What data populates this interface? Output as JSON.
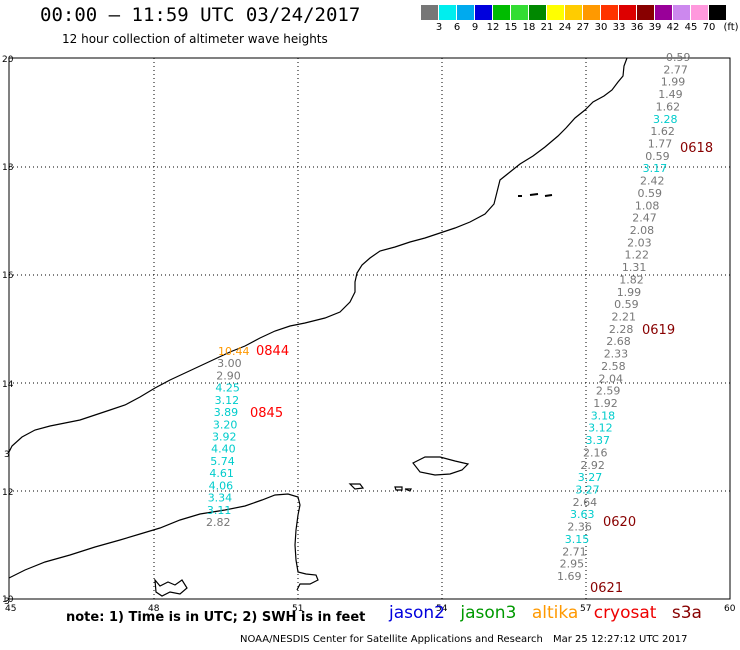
{
  "header": {
    "title": "00:00 – 11:59 UTC 03/24/2017",
    "subtitle": "12 hour collection of altimeter wave heights"
  },
  "scale": {
    "unit": "(ft)",
    "labels": [
      "3",
      "6",
      "9",
      "12",
      "15",
      "18",
      "21",
      "24",
      "27",
      "30",
      "33",
      "36",
      "39",
      "42",
      "45",
      "70"
    ],
    "colors": [
      "#777777",
      "#00eeee",
      "#00aaee",
      "#0000dd",
      "#00bb00",
      "#33dd33",
      "#008800",
      "#ffff00",
      "#ffcc00",
      "#ff9900",
      "#ff3300",
      "#dd0000",
      "#880000",
      "#990099",
      "#cc88ee",
      "#ff99dd",
      "#000000"
    ]
  },
  "axes": {
    "lon_ticks": [
      "45",
      "48",
      "51",
      "54",
      "57",
      "60"
    ],
    "lat_ticks": [
      "20",
      "18",
      "16",
      "14",
      "12",
      "10"
    ],
    "edge_marks": [
      "3",
      "3"
    ]
  },
  "passes": {
    "left_track": {
      "labels": [
        {
          "text": "0844",
          "color": "#ff0000"
        },
        {
          "text": "0845",
          "color": "#ff0000"
        }
      ],
      "values": [
        {
          "v": "10.44",
          "c": "#ff9900"
        },
        {
          "v": "3.00",
          "c": "#777777"
        },
        {
          "v": "2.90",
          "c": "#777777"
        },
        {
          "v": "4.25",
          "c": "#00cccc"
        },
        {
          "v": "3.12",
          "c": "#00cccc"
        },
        {
          "v": "3.89",
          "c": "#00cccc"
        },
        {
          "v": "3.20",
          "c": "#00cccc"
        },
        {
          "v": "3.92",
          "c": "#00cccc"
        },
        {
          "v": "4.40",
          "c": "#00cccc"
        },
        {
          "v": "5.74",
          "c": "#00cccc"
        },
        {
          "v": "4.61",
          "c": "#00cccc"
        },
        {
          "v": "4.06",
          "c": "#00cccc"
        },
        {
          "v": "3.34",
          "c": "#00cccc"
        },
        {
          "v": "3.11",
          "c": "#00cccc"
        },
        {
          "v": "2.82",
          "c": "#777777"
        }
      ]
    },
    "right_track": {
      "labels": [
        {
          "text": "0618",
          "color": "#880000"
        },
        {
          "text": "0619",
          "color": "#880000"
        },
        {
          "text": "0620",
          "color": "#880000"
        },
        {
          "text": "0621",
          "color": "#880000"
        }
      ],
      "values": [
        {
          "v": "0.59",
          "c": "#777777"
        },
        {
          "v": "2.77",
          "c": "#777777"
        },
        {
          "v": "1.99",
          "c": "#777777"
        },
        {
          "v": "1.49",
          "c": "#777777"
        },
        {
          "v": "1.62",
          "c": "#777777"
        },
        {
          "v": "3.28",
          "c": "#00cccc"
        },
        {
          "v": "1.62",
          "c": "#777777"
        },
        {
          "v": "1.77",
          "c": "#777777"
        },
        {
          "v": "0.59",
          "c": "#777777"
        },
        {
          "v": "3.17",
          "c": "#00cccc"
        },
        {
          "v": "2.42",
          "c": "#777777"
        },
        {
          "v": "0.59",
          "c": "#777777"
        },
        {
          "v": "1.08",
          "c": "#777777"
        },
        {
          "v": "2.47",
          "c": "#777777"
        },
        {
          "v": "2.08",
          "c": "#777777"
        },
        {
          "v": "2.03",
          "c": "#777777"
        },
        {
          "v": "1.22",
          "c": "#777777"
        },
        {
          "v": "1.31",
          "c": "#777777"
        },
        {
          "v": "1.82",
          "c": "#777777"
        },
        {
          "v": "1.99",
          "c": "#777777"
        },
        {
          "v": "0.59",
          "c": "#777777"
        },
        {
          "v": "2.21",
          "c": "#777777"
        },
        {
          "v": "2.28",
          "c": "#777777"
        },
        {
          "v": "2.68",
          "c": "#777777"
        },
        {
          "v": "2.33",
          "c": "#777777"
        },
        {
          "v": "2.58",
          "c": "#777777"
        },
        {
          "v": "2.04",
          "c": "#777777"
        },
        {
          "v": "2.59",
          "c": "#777777"
        },
        {
          "v": "1.92",
          "c": "#777777"
        },
        {
          "v": "3.18",
          "c": "#00cccc"
        },
        {
          "v": "3.12",
          "c": "#00cccc"
        },
        {
          "v": "3.37",
          "c": "#00cccc"
        },
        {
          "v": "2.16",
          "c": "#777777"
        },
        {
          "v": "2.92",
          "c": "#777777"
        },
        {
          "v": "3.27",
          "c": "#00cccc"
        },
        {
          "v": "3.27",
          "c": "#00cccc"
        },
        {
          "v": "2.64",
          "c": "#777777"
        },
        {
          "v": "3.63",
          "c": "#00cccc"
        },
        {
          "v": "2.36",
          "c": "#777777"
        },
        {
          "v": "3.15",
          "c": "#00cccc"
        },
        {
          "v": "2.71",
          "c": "#777777"
        },
        {
          "v": "2.95",
          "c": "#777777"
        },
        {
          "v": "1.69",
          "c": "#777777"
        }
      ]
    }
  },
  "footer": {
    "note": "note: 1) Time is in UTC; 2) SWH is in feet",
    "legend": [
      {
        "name": "jason2",
        "color": "#0000dd"
      },
      {
        "name": "jason3",
        "color": "#009900"
      },
      {
        "name": "altika",
        "color": "#ff9900"
      },
      {
        "name": "cryosat",
        "color": "#ee0000"
      },
      {
        "name": "s3a",
        "color": "#880000"
      }
    ],
    "credit": "NOAA/NESDIS Center for Satellite Applications and Research",
    "timestamp": "Mar 25 12:27:12 UTC 2017"
  }
}
